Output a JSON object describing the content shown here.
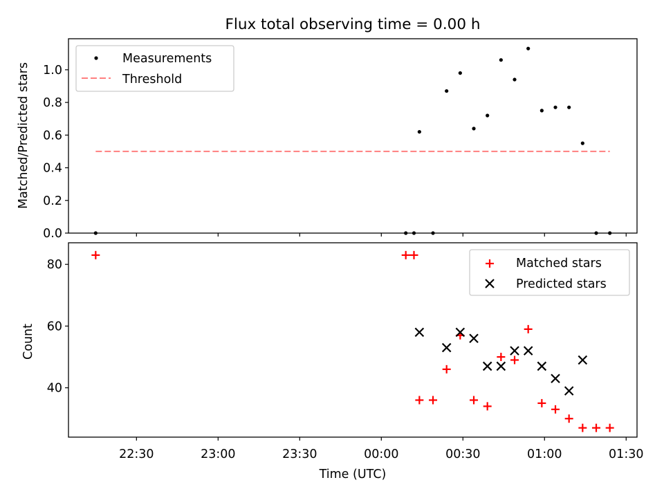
{
  "chart_data": [
    {
      "type": "scatter",
      "title": "Flux total observing time = 0.00 h",
      "ylabel": "Matched/Predicted stars",
      "xlabel": "",
      "ylim": [
        0,
        1.19
      ],
      "yticks": [
        "0.0",
        "0.2",
        "0.4",
        "0.6",
        "0.8",
        "1.0"
      ],
      "legend_position": "upper-left",
      "series": [
        {
          "name": "Measurements",
          "marker": "dot",
          "color": "#000000",
          "x": [
            "22:15",
            "00:09",
            "00:12",
            "00:14",
            "00:19",
            "00:24",
            "00:29",
            "00:34",
            "00:39",
            "00:44",
            "00:49",
            "00:54",
            "00:59",
            "01:04",
            "01:09",
            "01:14",
            "01:19",
            "01:24"
          ],
          "y": [
            0.0,
            0.0,
            0.0,
            0.62,
            0.0,
            0.87,
            0.98,
            0.64,
            0.72,
            1.06,
            0.94,
            1.13,
            0.75,
            0.77,
            0.77,
            0.55,
            0.0,
            0.0
          ]
        },
        {
          "name": "Threshold",
          "line": "dashed",
          "color": "#ff7f7f",
          "x": [
            "22:15",
            "01:24"
          ],
          "y": [
            0.5,
            0.5
          ]
        }
      ]
    },
    {
      "type": "scatter",
      "xlabel": "Time (UTC)",
      "ylabel": "Count",
      "ylim": [
        24,
        87
      ],
      "yticks": [
        "40",
        "60",
        "80"
      ],
      "xticks": [
        "22:30",
        "23:00",
        "23:30",
        "00:00",
        "00:30",
        "01:00",
        "01:30"
      ],
      "xlim": [
        "22:05",
        "01:34"
      ],
      "legend_position": "upper-right",
      "series": [
        {
          "name": "Matched stars",
          "marker": "plus",
          "color": "#ff0000",
          "x": [
            "22:15",
            "00:09",
            "00:12",
            "00:14",
            "00:19",
            "00:24",
            "00:29",
            "00:34",
            "00:39",
            "00:44",
            "00:49",
            "00:54",
            "00:59",
            "01:04",
            "01:09",
            "01:14",
            "01:19",
            "01:24"
          ],
          "y": [
            83,
            83,
            83,
            36,
            36,
            46,
            57,
            36,
            34,
            50,
            49,
            59,
            35,
            33,
            30,
            27,
            27,
            27
          ]
        },
        {
          "name": "Predicted stars",
          "marker": "x",
          "color": "#000000",
          "x": [
            "00:14",
            "00:24",
            "00:29",
            "00:34",
            "00:39",
            "00:44",
            "00:49",
            "00:54",
            "00:59",
            "01:04",
            "01:09",
            "01:14"
          ],
          "y": [
            58,
            53,
            58,
            56,
            47,
            47,
            52,
            52,
            47,
            43,
            39,
            49
          ]
        }
      ]
    }
  ]
}
